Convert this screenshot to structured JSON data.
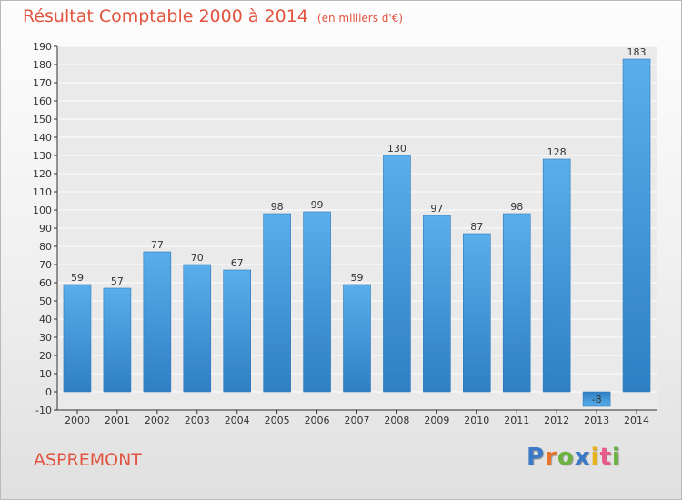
{
  "chart_data": {
    "type": "bar",
    "title": "Résultat Comptable 2000 à 2014",
    "subtitle": "(en milliers d'€)",
    "categories": [
      "2000",
      "2001",
      "2002",
      "2003",
      "2004",
      "2005",
      "2006",
      "2007",
      "2008",
      "2009",
      "2010",
      "2011",
      "2012",
      "2013",
      "2014"
    ],
    "values": [
      59,
      57,
      77,
      70,
      67,
      98,
      99,
      59,
      130,
      97,
      87,
      98,
      128,
      -8,
      183
    ],
    "data_labels": [
      "59",
      "57",
      "77",
      "70",
      "67",
      "98",
      "99",
      "59",
      "130",
      "97",
      "87",
      "98",
      "128",
      "-8",
      "183"
    ],
    "ylim": [
      -10,
      190
    ],
    "yticks": [
      -10,
      0,
      10,
      20,
      30,
      40,
      50,
      60,
      70,
      80,
      90,
      100,
      110,
      120,
      130,
      140,
      150,
      160,
      170,
      180,
      190
    ],
    "grid": true,
    "bar_color": "#4c9de0"
  },
  "commune": "ASPREMONT",
  "logo": {
    "letters": [
      "P",
      "r",
      "o",
      "x",
      "i",
      "t",
      "i"
    ],
    "colors": [
      "#3a78c8",
      "#e8742a",
      "#6cb33f",
      "#3a78c8",
      "#e8b21f",
      "#e85a8b",
      "#6cb33f"
    ]
  }
}
